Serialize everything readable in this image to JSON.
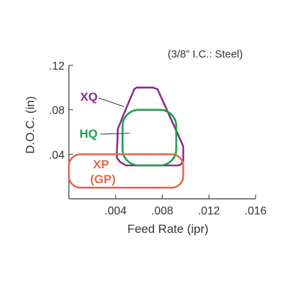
{
  "chart_data": {
    "type": "area",
    "subtitle": "(3/8” I.C.: Steel)",
    "xlabel": "Feed Rate (ipr)",
    "ylabel": "D.O.C. (in)",
    "xlim": [
      0,
      0.016
    ],
    "ylim": [
      0,
      0.12
    ],
    "x_ticks": [
      0.004,
      0.008,
      0.012,
      0.016
    ],
    "x_tick_labels": [
      ".004",
      ".008",
      ".012",
      ".016"
    ],
    "y_ticks": [
      0.04,
      0.08,
      0.12
    ],
    "y_tick_labels": [
      ".04",
      ".08",
      ".12"
    ],
    "grid": false,
    "series": [
      {
        "name": "XQ",
        "color": "#8e2a8f",
        "shape": "polygon",
        "points": [
          [
            0.0058,
            0.1
          ],
          [
            0.0072,
            0.1
          ],
          [
            0.0076,
            0.0985
          ],
          [
            0.0096,
            0.052
          ],
          [
            0.0098,
            0.047
          ],
          [
            0.0098,
            0.034
          ],
          [
            0.0096,
            0.031
          ],
          [
            0.0094,
            0.03
          ],
          [
            0.0049,
            0.03
          ],
          [
            0.0044,
            0.033
          ],
          [
            0.0041,
            0.037
          ],
          [
            0.0042,
            0.063
          ],
          [
            0.0047,
            0.076
          ],
          [
            0.0056,
            0.0985
          ]
        ]
      },
      {
        "name": "HQ",
        "color": "#19a04b",
        "shape": "rounded-rect",
        "x0": 0.0046,
        "x1": 0.0092,
        "y0": 0.03,
        "y1": 0.08,
        "corner_radius_data": 0.0014,
        "notch_points": [
          [
            0.0046,
            0.078
          ],
          [
            0.005,
            0.0795
          ],
          [
            0.0054,
            0.08
          ]
        ]
      },
      {
        "name": "XP\n(GP)",
        "label_lines": [
          "XP",
          "(GP)"
        ],
        "color": "#e06a4a",
        "shape": "rounded-rect",
        "x0": 0.0,
        "x1": 0.0098,
        "y0": 0.01,
        "y1": 0.04,
        "corner_radius_data": 0.001
      }
    ],
    "annotations": [
      {
        "text": "XQ",
        "color": "#8e2a8f",
        "leader_to": [
          0.0047,
          0.083
        ]
      },
      {
        "text": "HQ",
        "color": "#19a04b",
        "leader_to": [
          0.0052,
          0.059
        ]
      },
      {
        "text": "XP",
        "color": "#e06a4a"
      },
      {
        "text": "(GP)",
        "color": "#e06a4a"
      }
    ]
  }
}
